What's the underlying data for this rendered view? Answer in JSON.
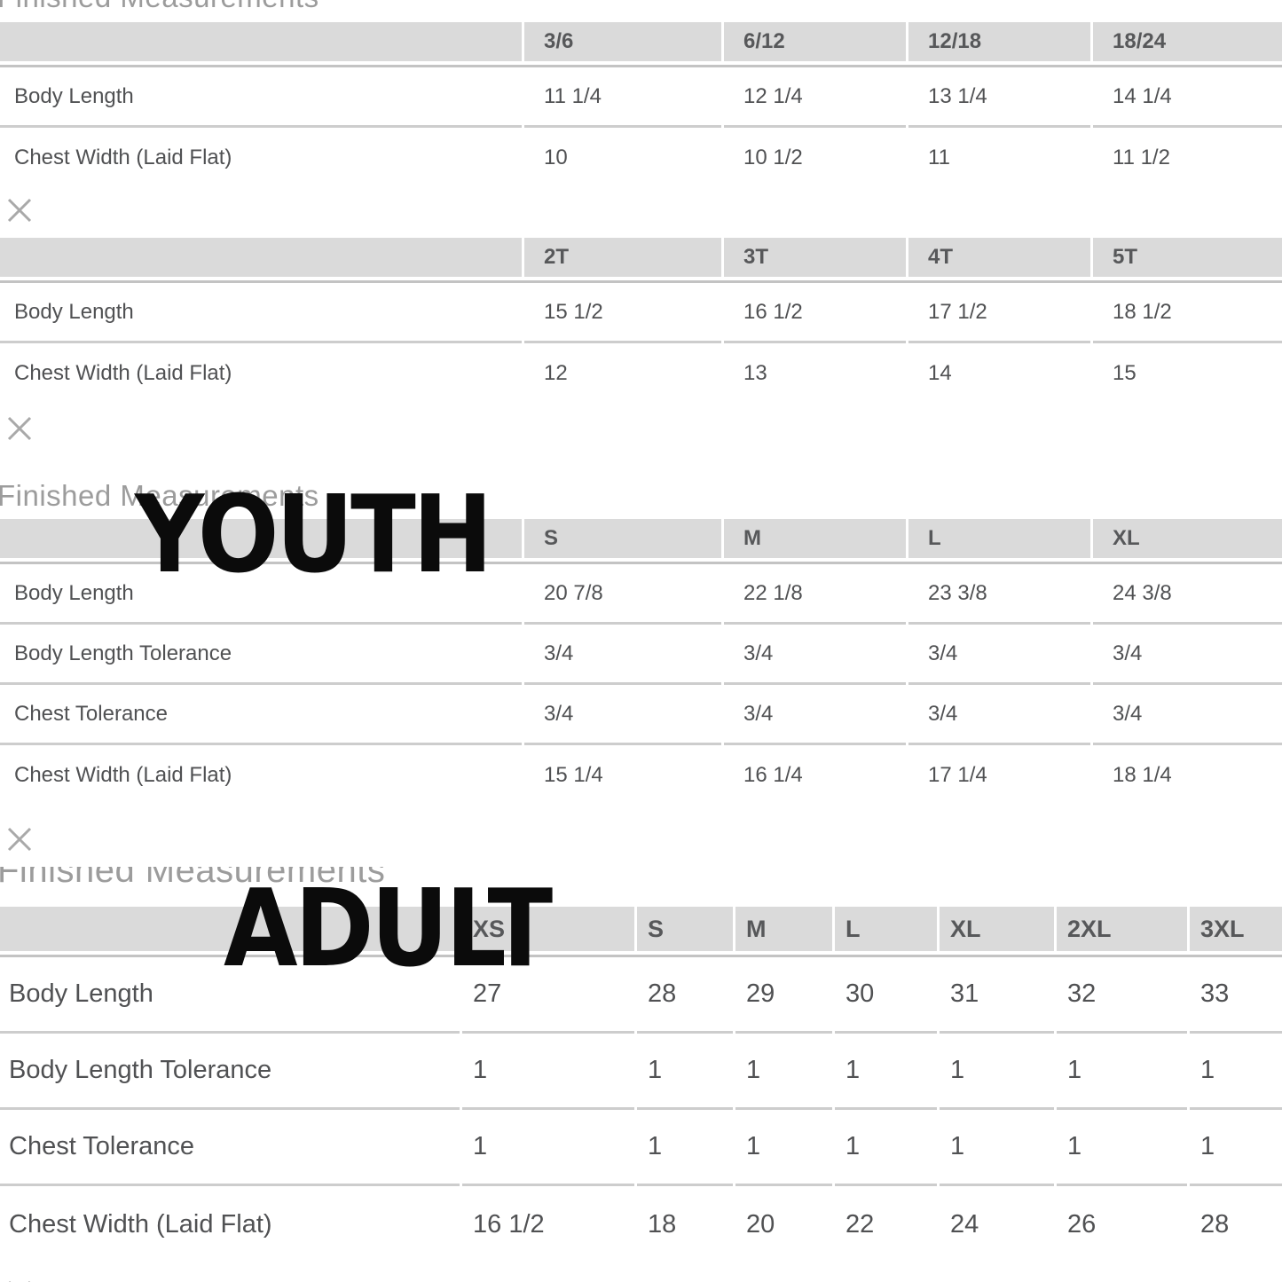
{
  "section_heading": "Finished Measurements",
  "overlays": {
    "youth": "YOUTH",
    "adult": "ADULT"
  },
  "icons": {
    "close": "✕"
  },
  "colors": {
    "background": "#ffffff",
    "header_band": "#dadada",
    "header_text": "#57585a",
    "body_text": "#505153",
    "heading_text": "#9c9c9c",
    "separator": "#cdcdcd",
    "overlay_text": "#0b0b0b",
    "close_icon": "#a9a9a9"
  },
  "tables": [
    {
      "id": "infant",
      "heading": "Finished Measurements",
      "columns": [
        "",
        "3/6",
        "6/12",
        "12/18",
        "18/24"
      ],
      "rows": [
        {
          "label": "Body Length",
          "values": [
            "11 1/4",
            "12 1/4",
            "13 1/4",
            "14 1/4"
          ]
        },
        {
          "label": "Chest Width (Laid Flat)",
          "values": [
            "10",
            "10 1/2",
            "11",
            "11 1/2"
          ]
        }
      ]
    },
    {
      "id": "toddler",
      "columns": [
        "",
        "2T",
        "3T",
        "4T",
        "5T"
      ],
      "rows": [
        {
          "label": "Body Length",
          "values": [
            "15 1/2",
            "16 1/2",
            "17 1/2",
            "18 1/2"
          ]
        },
        {
          "label": "Chest Width (Laid Flat)",
          "values": [
            "12",
            "13",
            "14",
            "15"
          ]
        }
      ]
    },
    {
      "id": "youth",
      "heading": "Finished Measurements",
      "overlay": "YOUTH",
      "columns": [
        "",
        "S",
        "M",
        "L",
        "XL"
      ],
      "rows": [
        {
          "label": "Body Length",
          "values": [
            "20 7/8",
            "22 1/8",
            "23 3/8",
            "24 3/8"
          ]
        },
        {
          "label": "Body Length Tolerance",
          "values": [
            "3/4",
            "3/4",
            "3/4",
            "3/4"
          ]
        },
        {
          "label": "Chest Tolerance",
          "values": [
            "3/4",
            "3/4",
            "3/4",
            "3/4"
          ]
        },
        {
          "label": "Chest Width (Laid Flat)",
          "values": [
            "15 1/4",
            "16 1/4",
            "17 1/4",
            "18 1/4"
          ]
        }
      ]
    },
    {
      "id": "adult",
      "heading": "Finished Measurements",
      "overlay": "ADULT",
      "columns": [
        "",
        "XS",
        "S",
        "M",
        "L",
        "XL",
        "2XL",
        "3XL"
      ],
      "rows": [
        {
          "label": "Body Length",
          "values": [
            "27",
            "28",
            "29",
            "30",
            "31",
            "32",
            "33"
          ]
        },
        {
          "label": "Body Length Tolerance",
          "values": [
            "1",
            "1",
            "1",
            "1",
            "1",
            "1",
            "1"
          ]
        },
        {
          "label": "Chest Tolerance",
          "values": [
            "1",
            "1",
            "1",
            "1",
            "1",
            "1",
            "1"
          ]
        },
        {
          "label": "Chest Width (Laid Flat)",
          "values": [
            "16 1/2",
            "18",
            "20",
            "22",
            "24",
            "26",
            "28"
          ]
        }
      ]
    }
  ]
}
